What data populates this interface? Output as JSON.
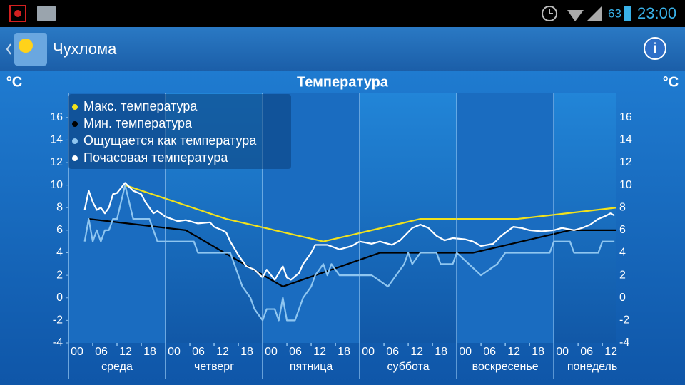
{
  "status_bar": {
    "battery": "63",
    "time": "23:00"
  },
  "app_bar": {
    "title": "Чухлома"
  },
  "chart_data": {
    "type": "line",
    "title": "Температура",
    "y_label_left": "°C",
    "y_label_right": "°C",
    "xlim": [
      0,
      135.5
    ],
    "ylim": [
      -4,
      18.2
    ],
    "yticks": [
      -4,
      -2,
      0,
      2,
      4,
      6,
      8,
      10,
      12,
      14,
      16
    ],
    "xticks": [
      {
        "value": 0,
        "label": "00"
      },
      {
        "value": 6,
        "label": "06"
      },
      {
        "value": 12,
        "label": "12"
      },
      {
        "value": 18,
        "label": "18"
      },
      {
        "value": 24,
        "label": "00"
      },
      {
        "value": 30,
        "label": "06"
      },
      {
        "value": 36,
        "label": "12"
      },
      {
        "value": 42,
        "label": "18"
      },
      {
        "value": 48,
        "label": "00"
      },
      {
        "value": 54,
        "label": "06"
      },
      {
        "value": 60,
        "label": "12"
      },
      {
        "value": 66,
        "label": "18"
      },
      {
        "value": 72,
        "label": "00"
      },
      {
        "value": 78,
        "label": "06"
      },
      {
        "value": 84,
        "label": "12"
      },
      {
        "value": 90,
        "label": "18"
      },
      {
        "value": 96,
        "label": "00"
      },
      {
        "value": 102,
        "label": "06"
      },
      {
        "value": 108,
        "label": "12"
      },
      {
        "value": 114,
        "label": "18"
      },
      {
        "value": 120,
        "label": "00"
      },
      {
        "value": 126,
        "label": "06"
      },
      {
        "value": 132,
        "label": "12"
      }
    ],
    "days": [
      {
        "value": 12,
        "label": "среда"
      },
      {
        "value": 36,
        "label": "четверг"
      },
      {
        "value": 60,
        "label": "пятница"
      },
      {
        "value": 84,
        "label": "суббота"
      },
      {
        "value": 108,
        "label": "воскресенье"
      },
      {
        "value": 132,
        "label": "понедель"
      }
    ],
    "legend": "upper left",
    "series": [
      {
        "name": "Макс. температура",
        "color": "#f2e21c",
        "x": [
          14,
          39,
          63,
          87,
          111,
          135.5
        ],
        "values": [
          10,
          7,
          5,
          7,
          7,
          8
        ]
      },
      {
        "name": "Мин. температура",
        "color": "#000000",
        "x": [
          5,
          29,
          53,
          77,
          100,
          124,
          135.5
        ],
        "values": [
          7,
          6,
          1,
          4,
          4,
          6,
          6
        ]
      },
      {
        "name": "Ощущается как температура",
        "color": "#8fc6f0",
        "x": [
          4,
          5,
          6,
          7,
          8,
          9,
          10,
          11,
          12,
          14,
          16,
          20,
          22,
          31,
          32,
          40,
          41,
          42,
          43,
          45,
          46,
          48,
          49,
          51,
          52,
          53,
          54,
          56,
          58,
          60,
          61,
          63,
          64,
          65,
          67,
          71,
          75,
          79,
          81,
          83,
          84,
          85,
          87,
          91,
          92,
          95,
          96,
          99,
          102,
          106,
          108,
          119,
          120,
          124,
          125,
          131,
          132,
          135
        ],
        "values": [
          5,
          7,
          5,
          6,
          5,
          6,
          6,
          7,
          7,
          10,
          7,
          7,
          5,
          5,
          4,
          4,
          3,
          2,
          1,
          0,
          -1,
          -2,
          -1,
          -1,
          -2,
          0,
          -2,
          -2,
          0,
          1,
          2,
          3,
          2,
          3,
          2,
          2,
          2,
          1,
          2,
          3,
          4,
          3,
          4,
          4,
          3,
          3,
          4,
          3,
          2,
          3,
          4,
          4,
          5,
          5,
          4,
          4,
          5,
          5
        ]
      },
      {
        "name": "Почасовая температура",
        "color": "#ffffff",
        "x": [
          4,
          5,
          6,
          7,
          8,
          9,
          10,
          11,
          12,
          14,
          16,
          18,
          19,
          21,
          22,
          24,
          27,
          29,
          32,
          35,
          36,
          38,
          39,
          40,
          42,
          44,
          46,
          48,
          49,
          51,
          53,
          54,
          55,
          57,
          58,
          60,
          61,
          64,
          67,
          70,
          72,
          75,
          77,
          80,
          82,
          85,
          87,
          89,
          91,
          93,
          95,
          98,
          100,
          102,
          105,
          107,
          110,
          112,
          114,
          117,
          120,
          122,
          125,
          127,
          129,
          131,
          133,
          134,
          135
        ],
        "values": [
          7.8,
          9.5,
          8.5,
          7.8,
          8,
          7.5,
          8,
          9.2,
          9.3,
          10.2,
          9.5,
          9.2,
          8.5,
          7.5,
          7.7,
          7.2,
          6.8,
          6.9,
          6.6,
          6.7,
          6.3,
          6.0,
          5.8,
          5.0,
          3.8,
          2.8,
          2.5,
          1.8,
          2.5,
          1.6,
          2.8,
          1.8,
          1.6,
          2.2,
          3,
          4,
          4.7,
          4.7,
          4.3,
          4.6,
          5,
          4.8,
          5,
          4.7,
          5.1,
          6.2,
          6.5,
          6.2,
          5.5,
          5.1,
          5.3,
          5.2,
          5.0,
          4.6,
          4.8,
          5.5,
          6.3,
          6.2,
          6.0,
          5.9,
          6.0,
          6.2,
          6.0,
          6.2,
          6.5,
          7.0,
          7.3,
          7.5,
          7.3
        ]
      }
    ]
  }
}
